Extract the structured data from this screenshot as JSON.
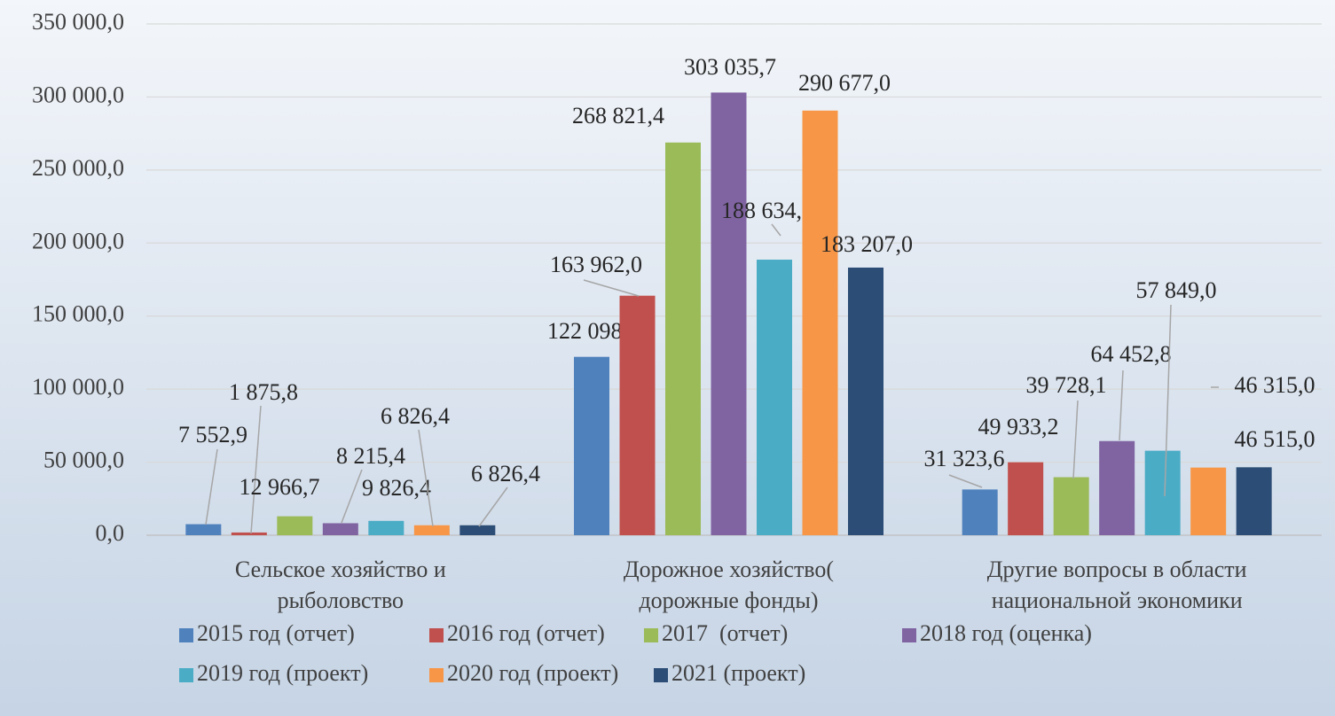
{
  "chart_data": {
    "type": "bar",
    "categories": [
      [
        "Сельское хозяйство и",
        "рыболовство"
      ],
      [
        "Дорожное хозяйство(",
        "дорожные фонды)"
      ],
      [
        "Другие вопросы в области",
        "национальной экономики"
      ]
    ],
    "series": [
      {
        "name": "2015 год (отчет)",
        "color": "#4f81bd",
        "values": [
          7552.9,
          122098.3,
          31323.6
        ],
        "value_labels": [
          "7 552,9",
          "122 098,3",
          "31 323,6"
        ]
      },
      {
        "name": "2016 год (отчет)",
        "color": "#c0504d",
        "values": [
          1875.8,
          163962.0,
          49933.2
        ],
        "value_labels": [
          "1 875,8",
          "163 962,0",
          "49 933,2"
        ]
      },
      {
        "name": "2017  (отчет)",
        "color": "#9bbb59",
        "values": [
          12966.7,
          268821.4,
          39728.1
        ],
        "value_labels": [
          "12 966,7",
          "268 821,4",
          "39 728,1"
        ]
      },
      {
        "name": "2018 год (оценка)",
        "color": "#8064a2",
        "values": [
          8215.4,
          303035.7,
          64452.8
        ],
        "value_labels": [
          "8 215,4",
          "303 035,7",
          "64 452,8"
        ]
      },
      {
        "name": "2019 год (проект)",
        "color": "#4bacc6",
        "values": [
          9826.4,
          188634.0,
          57849.0
        ],
        "value_labels": [
          "9 826,4",
          "188 634,0",
          "57 849,0"
        ]
      },
      {
        "name": "2020 год (проект)",
        "color": "#f79646",
        "values": [
          6826.4,
          290677.0,
          46315.0
        ],
        "value_labels": [
          "6 826,4",
          "290 677,0",
          "46 315,0"
        ]
      },
      {
        "name": "2021 (проект)",
        "color": "#2c4d75",
        "values": [
          6826.4,
          183207.0,
          46515.0
        ],
        "value_labels": [
          "6 826,4",
          "183 207,0",
          "46 515,0"
        ]
      }
    ],
    "ylim": [
      0,
      350000
    ],
    "yticks": [
      {
        "value": 0,
        "label": "0,0"
      },
      {
        "value": 50000,
        "label": "50 000,0"
      },
      {
        "value": 100000,
        "label": "100 000,0"
      },
      {
        "value": 150000,
        "label": "150 000,0"
      },
      {
        "value": 200000,
        "label": "200 000,0"
      },
      {
        "value": 250000,
        "label": "250 000,0"
      },
      {
        "value": 300000,
        "label": "300 000,0"
      },
      {
        "value": 350000,
        "label": "350 000,0"
      }
    ],
    "grid": true,
    "legend": "bottom"
  }
}
